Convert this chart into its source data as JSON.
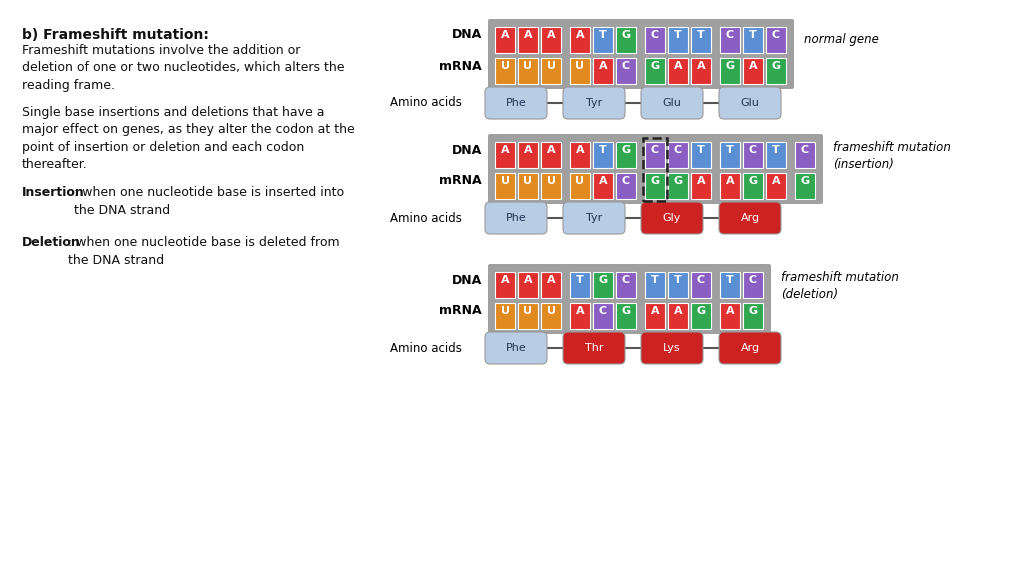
{
  "bg_color": "#ffffff",
  "nucleotide_colors": {
    "A": "#e03030",
    "T": "#5b8fd4",
    "G": "#2fa84f",
    "C": "#8b5ec4",
    "U": "#e08a20",
    "gap": "#aaaaaa"
  },
  "normal_dna": [
    "A",
    "A",
    "A",
    "",
    "A",
    "T",
    "G",
    "",
    "C",
    "T",
    "T",
    "",
    "C",
    "T",
    "C"
  ],
  "normal_mrna": [
    "U",
    "U",
    "U",
    "",
    "U",
    "A",
    "C",
    "",
    "G",
    "A",
    "A",
    "",
    "G",
    "A",
    "G"
  ],
  "normal_aa": [
    "Phe",
    "Tyr",
    "Glu",
    "Glu"
  ],
  "normal_aa_col": [
    "#b8cce4",
    "#b8cce4",
    "#b8cce4",
    "#b8cce4"
  ],
  "insert_dna": [
    "A",
    "A",
    "A",
    "",
    "A",
    "T",
    "G",
    "",
    "C",
    "C",
    "T",
    "",
    "T",
    "C",
    "T",
    "",
    "C"
  ],
  "insert_mrna": [
    "U",
    "U",
    "U",
    "",
    "U",
    "A",
    "C",
    "",
    "G",
    "G",
    "A",
    "",
    "A",
    "G",
    "A",
    "",
    "G"
  ],
  "insert_highlight": 8,
  "insert_aa": [
    "Phe",
    "Tyr",
    "Gly",
    "Arg"
  ],
  "insert_aa_col": [
    "#b8cce4",
    "#b8cce4",
    "#cc2222",
    "#cc2222"
  ],
  "delete_dna": [
    "A",
    "A",
    "A",
    "",
    "T",
    "G",
    "C",
    "",
    "T",
    "T",
    "C",
    "",
    "T",
    "C"
  ],
  "delete_mrna": [
    "U",
    "U",
    "U",
    "",
    "A",
    "C",
    "G",
    "",
    "A",
    "A",
    "G",
    "",
    "A",
    "G"
  ],
  "delete_highlight": 3,
  "delete_aa": [
    "Phe",
    "Thr",
    "Lys",
    "Arg"
  ],
  "delete_aa_col": [
    "#b8cce4",
    "#cc2222",
    "#cc2222",
    "#cc2222"
  ],
  "title": "b) Frameshift mutation:",
  "para1": "Frameshift mutations involve the addition or\ndeletion of one or two nucleotides, which alters the\nreading frame.",
  "para2": "Single base insertions and deletions that have a\nmajor effect on genes, as they alter the codon at the\npoint of insertion or deletion and each codon\nthereafter.",
  "ins_bold": "Insertion",
  "ins_rest": ": when one nucleotide base is inserted into\nthe DNA strand",
  "del_bold": "Deletion",
  "del_rest": ": when one nucleotide base is deleted from\nthe DNA strand",
  "label_normal": "normal gene",
  "label_insert": "frameshift mutation\n(insertion)",
  "label_delete": "frameshift mutation\n(deletion)"
}
